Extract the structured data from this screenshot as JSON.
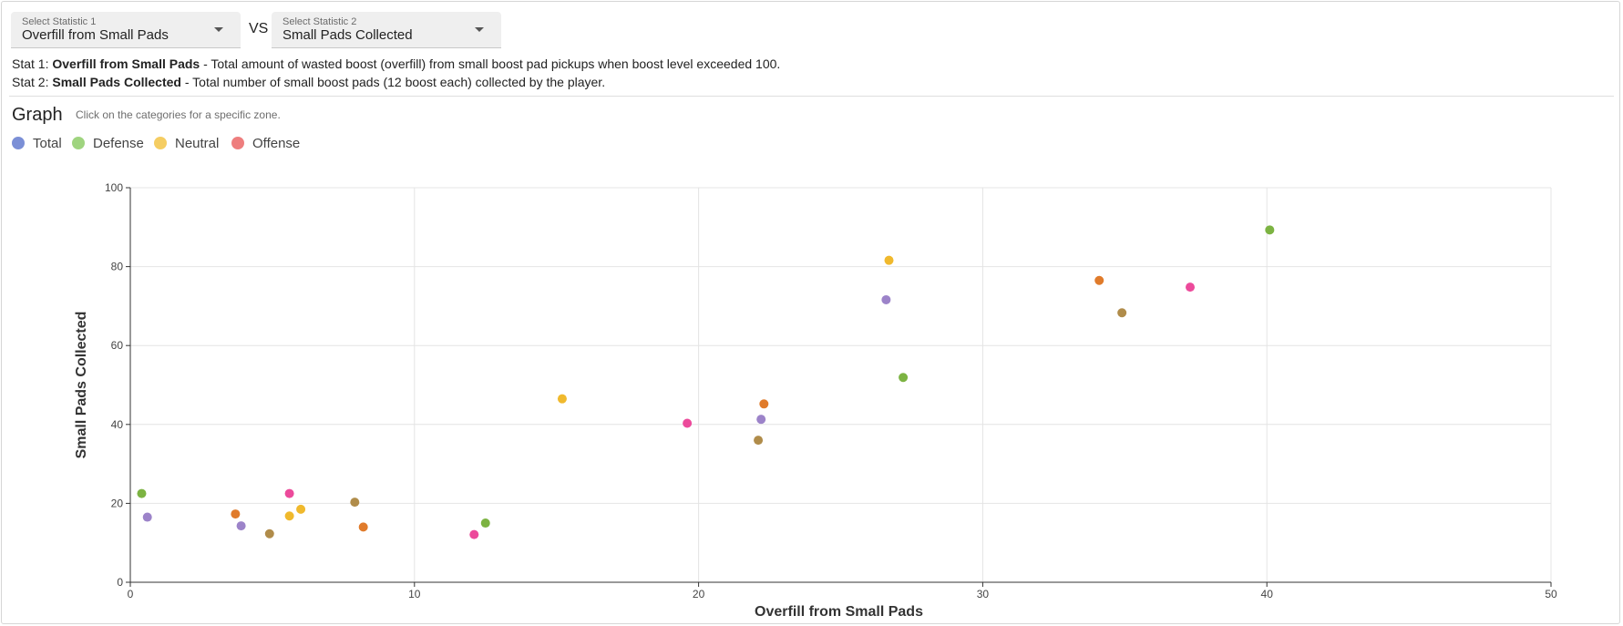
{
  "selectors": {
    "stat1": {
      "label": "Select Statistic 1",
      "value": "Overfill from Small Pads"
    },
    "vs_text": "VS",
    "stat2": {
      "label": "Select Statistic 2",
      "value": "Small Pads Collected"
    }
  },
  "descriptions": {
    "stat1": {
      "prefix": "Stat 1: ",
      "name": "Overfill from Small Pads",
      "text": " - Total amount of wasted boost (overfill) from small boost pad pickups when boost level exceeded 100."
    },
    "stat2": {
      "prefix": "Stat 2: ",
      "name": "Small Pads Collected",
      "text": " - Total number of small boost pads (12 boost each) collected by the player."
    }
  },
  "graph": {
    "title": "Graph",
    "hint": "Click on the categories for a specific zone."
  },
  "legend": [
    {
      "name": "Total",
      "color": "#7b8fd6"
    },
    {
      "name": "Defense",
      "color": "#9fd47f"
    },
    {
      "name": "Neutral",
      "color": "#f5cd62"
    },
    {
      "name": "Offense",
      "color": "#ee7e7e"
    }
  ],
  "colors": {
    "grid": "#e4e4e4",
    "axis": "#333333"
  },
  "chart_data": {
    "type": "scatter",
    "xlabel": "Overfill from Small Pads",
    "ylabel": "Small Pads Collected",
    "xlim": [
      0,
      50
    ],
    "ylim": [
      0,
      100
    ],
    "xticks": [
      0,
      10,
      20,
      30,
      40,
      50
    ],
    "yticks": [
      0,
      20,
      40,
      60,
      80,
      100
    ],
    "grid": true,
    "points": [
      {
        "x": 0.4,
        "y": 22.5,
        "color": "#7cb342"
      },
      {
        "x": 0.6,
        "y": 16.5,
        "color": "#9c83c9"
      },
      {
        "x": 3.7,
        "y": 17.3,
        "color": "#e07b2b"
      },
      {
        "x": 3.9,
        "y": 14.3,
        "color": "#9c83c9"
      },
      {
        "x": 4.9,
        "y": 12.3,
        "color": "#b08c4a"
      },
      {
        "x": 5.6,
        "y": 22.5,
        "color": "#ec4a9b"
      },
      {
        "x": 5.6,
        "y": 16.8,
        "color": "#f0b92d"
      },
      {
        "x": 6.0,
        "y": 18.5,
        "color": "#f0b92d"
      },
      {
        "x": 7.9,
        "y": 20.3,
        "color": "#b08c4a"
      },
      {
        "x": 8.2,
        "y": 14.0,
        "color": "#e07b2b"
      },
      {
        "x": 12.1,
        "y": 12.1,
        "color": "#ec4a9b"
      },
      {
        "x": 12.5,
        "y": 15.0,
        "color": "#7cb342"
      },
      {
        "x": 15.2,
        "y": 46.5,
        "color": "#f0b92d"
      },
      {
        "x": 19.6,
        "y": 40.3,
        "color": "#ec4a9b"
      },
      {
        "x": 22.1,
        "y": 36.0,
        "color": "#b08c4a"
      },
      {
        "x": 22.2,
        "y": 41.3,
        "color": "#9c83c9"
      },
      {
        "x": 22.3,
        "y": 45.2,
        "color": "#e07b2b"
      },
      {
        "x": 26.6,
        "y": 71.6,
        "color": "#9c83c9"
      },
      {
        "x": 26.7,
        "y": 81.6,
        "color": "#f0b92d"
      },
      {
        "x": 27.2,
        "y": 51.9,
        "color": "#7cb342"
      },
      {
        "x": 34.1,
        "y": 76.5,
        "color": "#e07b2b"
      },
      {
        "x": 34.9,
        "y": 68.3,
        "color": "#b08c4a"
      },
      {
        "x": 37.3,
        "y": 74.8,
        "color": "#ec4a9b"
      },
      {
        "x": 40.1,
        "y": 89.3,
        "color": "#7cb342"
      }
    ]
  }
}
